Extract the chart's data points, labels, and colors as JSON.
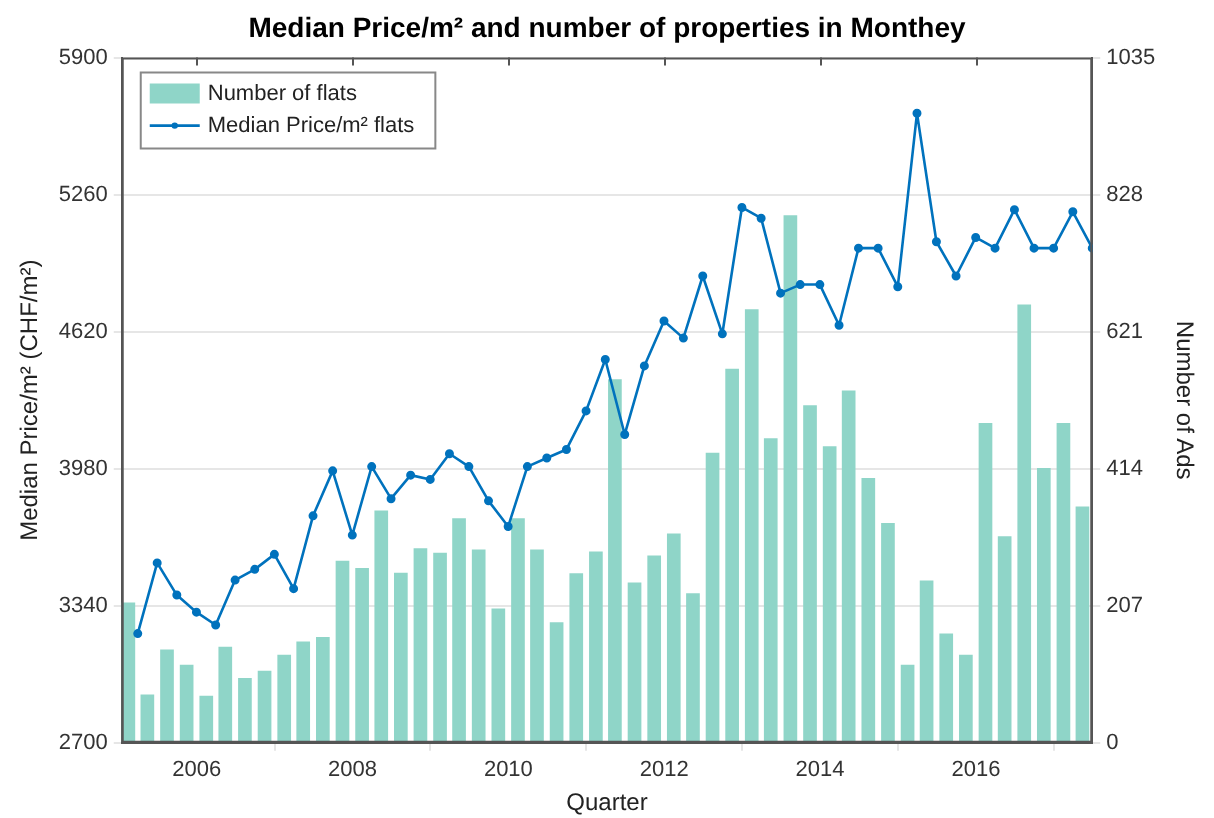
{
  "chart_data": {
    "type": "bar",
    "title": "Median Price/m² and number of properties in Monthey",
    "xlabel": "Quarter",
    "ylabel": "Median Price/m² (CHF/m²)",
    "y2label": "Number of Ads",
    "xlim": [
      "2005-01-15",
      "2017-06-30"
    ],
    "xticks": [
      "2006",
      "2008",
      "2010",
      "2012",
      "2014",
      "2016"
    ],
    "ylim": [
      2700,
      5900
    ],
    "yticks": [
      2700,
      3340,
      3980,
      4620,
      5260,
      5900
    ],
    "y2lim": [
      0,
      1035
    ],
    "y2ticks": [
      0,
      207,
      414,
      621,
      828,
      1035
    ],
    "grid": "y",
    "legend": "top left",
    "marker": "circle",
    "line_style": "solid",
    "series": [
      {
        "name": "Number of flats",
        "axis": "y2",
        "color": "#8fd5c8",
        "x": [
          "2005-02-15",
          "2005-05-15",
          "2005-08-15",
          "2005-11-15",
          "2006-02-15",
          "2006-05-15",
          "2006-08-15",
          "2006-11-15",
          "2007-02-15",
          "2007-05-15",
          "2007-08-15",
          "2007-11-15",
          "2008-02-15",
          "2008-05-15",
          "2008-08-15",
          "2008-11-15",
          "2009-02-15",
          "2009-05-15",
          "2009-08-15",
          "2009-11-15",
          "2010-02-15",
          "2010-05-15",
          "2010-08-15",
          "2010-11-15",
          "2011-02-15",
          "2011-05-15",
          "2011-08-15",
          "2011-11-15",
          "2012-02-15",
          "2012-05-15",
          "2012-08-15",
          "2012-11-15",
          "2013-02-15",
          "2013-05-15",
          "2013-08-15",
          "2013-11-15",
          "2014-02-15",
          "2014-05-15",
          "2014-08-15",
          "2014-11-15",
          "2015-02-15",
          "2015-05-15",
          "2015-08-15",
          "2015-11-15",
          "2016-02-15",
          "2016-05-15",
          "2016-08-15",
          "2016-11-15",
          "2017-02-15",
          "2017-05-15"
        ],
        "values": [
          212,
          73,
          141,
          118,
          71,
          145,
          98,
          109,
          133,
          153,
          160,
          275,
          264,
          351,
          257,
          294,
          287,
          339,
          292,
          203,
          339,
          292,
          182,
          256,
          289,
          549,
          242,
          283,
          316,
          226,
          438,
          565,
          655,
          460,
          797,
          510,
          448,
          532,
          400,
          332,
          118,
          245,
          165,
          133,
          483,
          312,
          662,
          415,
          483,
          357
        ]
      },
      {
        "name": "Median Price/m² flats",
        "type": "line",
        "axis": "y",
        "color": "#0072bd",
        "x": [
          "2005-03-31",
          "2005-06-30",
          "2005-09-30",
          "2005-12-31",
          "2006-03-31",
          "2006-06-30",
          "2006-09-30",
          "2006-12-31",
          "2007-03-31",
          "2007-06-30",
          "2007-09-30",
          "2007-12-31",
          "2008-03-31",
          "2008-06-30",
          "2008-09-30",
          "2008-12-31",
          "2009-03-31",
          "2009-06-30",
          "2009-09-30",
          "2009-12-31",
          "2010-03-31",
          "2010-06-30",
          "2010-09-30",
          "2010-12-31",
          "2011-03-31",
          "2011-06-30",
          "2011-09-30",
          "2011-12-31",
          "2012-03-31",
          "2012-06-30",
          "2012-09-30",
          "2012-12-31",
          "2013-03-31",
          "2013-06-30",
          "2013-09-30",
          "2013-12-31",
          "2014-03-31",
          "2014-06-30",
          "2014-09-30",
          "2014-12-31",
          "2015-03-31",
          "2015-06-30",
          "2015-09-30",
          "2015-12-31",
          "2016-03-31",
          "2016-06-30",
          "2016-09-30",
          "2016-12-31",
          "2017-03-31",
          "2017-06-30"
        ],
        "values": [
          3210,
          3540,
          3390,
          3310,
          3250,
          3460,
          3510,
          3580,
          3420,
          3760,
          3970,
          3670,
          3990,
          3840,
          3950,
          3930,
          4050,
          3990,
          3830,
          3710,
          3990,
          4030,
          4070,
          4250,
          4490,
          4140,
          4460,
          4670,
          4590,
          4880,
          4610,
          5200,
          5150,
          4800,
          4840,
          4840,
          4650,
          5010,
          5010,
          4830,
          5640,
          5040,
          4880,
          5060,
          5010,
          5190,
          5010,
          5010,
          5180,
          5010
        ]
      }
    ]
  }
}
